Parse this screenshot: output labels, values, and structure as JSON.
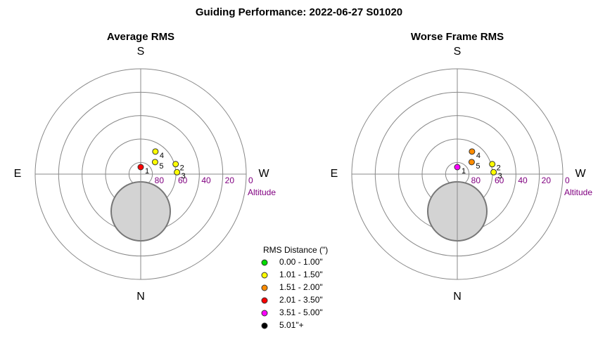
{
  "title": "Guiding Performance: 2022-06-27  S01020",
  "chart_data": [
    {
      "type": "polar",
      "title": "Average RMS",
      "compass": {
        "south": "S",
        "north": "N",
        "east": "E",
        "west": "W"
      },
      "r_label": "Altitude",
      "rlim": [
        90,
        0
      ],
      "rticks": [
        80,
        60,
        40,
        20,
        0
      ],
      "points": [
        {
          "label": "1",
          "az": 180,
          "alt": 84,
          "color": "#ff0000"
        },
        {
          "label": "2",
          "az": 106,
          "alt": 59,
          "color": "#ffff00"
        },
        {
          "label": "3",
          "az": 93,
          "alt": 59,
          "color": "#ffff00"
        },
        {
          "label": "4",
          "az": 147,
          "alt": 67,
          "color": "#ffff00"
        },
        {
          "label": "5",
          "az": 130,
          "alt": 74,
          "color": "#ffff00"
        }
      ]
    },
    {
      "type": "polar",
      "title": "Worse Frame RMS",
      "compass": {
        "south": "S",
        "north": "N",
        "east": "E",
        "west": "W"
      },
      "r_label": "Altitude",
      "rlim": [
        90,
        0
      ],
      "rticks": [
        80,
        60,
        40,
        20,
        0
      ],
      "points": [
        {
          "label": "1",
          "az": 180,
          "alt": 84,
          "color": "#ff00ff"
        },
        {
          "label": "2",
          "az": 106,
          "alt": 59,
          "color": "#ffff00"
        },
        {
          "label": "3",
          "az": 93,
          "alt": 59,
          "color": "#ffff00"
        },
        {
          "label": "4",
          "az": 147,
          "alt": 67,
          "color": "#ff8c00"
        },
        {
          "label": "5",
          "az": 130,
          "alt": 74,
          "color": "#ff8c00"
        }
      ]
    }
  ],
  "legend": {
    "title": "RMS Distance (\")",
    "items": [
      {
        "label": "0.00 - 1.00\"",
        "color": "#00dd00"
      },
      {
        "label": "1.01 - 1.50\"",
        "color": "#ffff00"
      },
      {
        "label": "1.51 - 2.00\"",
        "color": "#ff8c00"
      },
      {
        "label": "2.01 - 3.50\"",
        "color": "#ff0000"
      },
      {
        "label": "3.51 - 5.00\"",
        "color": "#ff00ff"
      },
      {
        "label": "5.01\"+",
        "color": "#000000"
      }
    ]
  }
}
